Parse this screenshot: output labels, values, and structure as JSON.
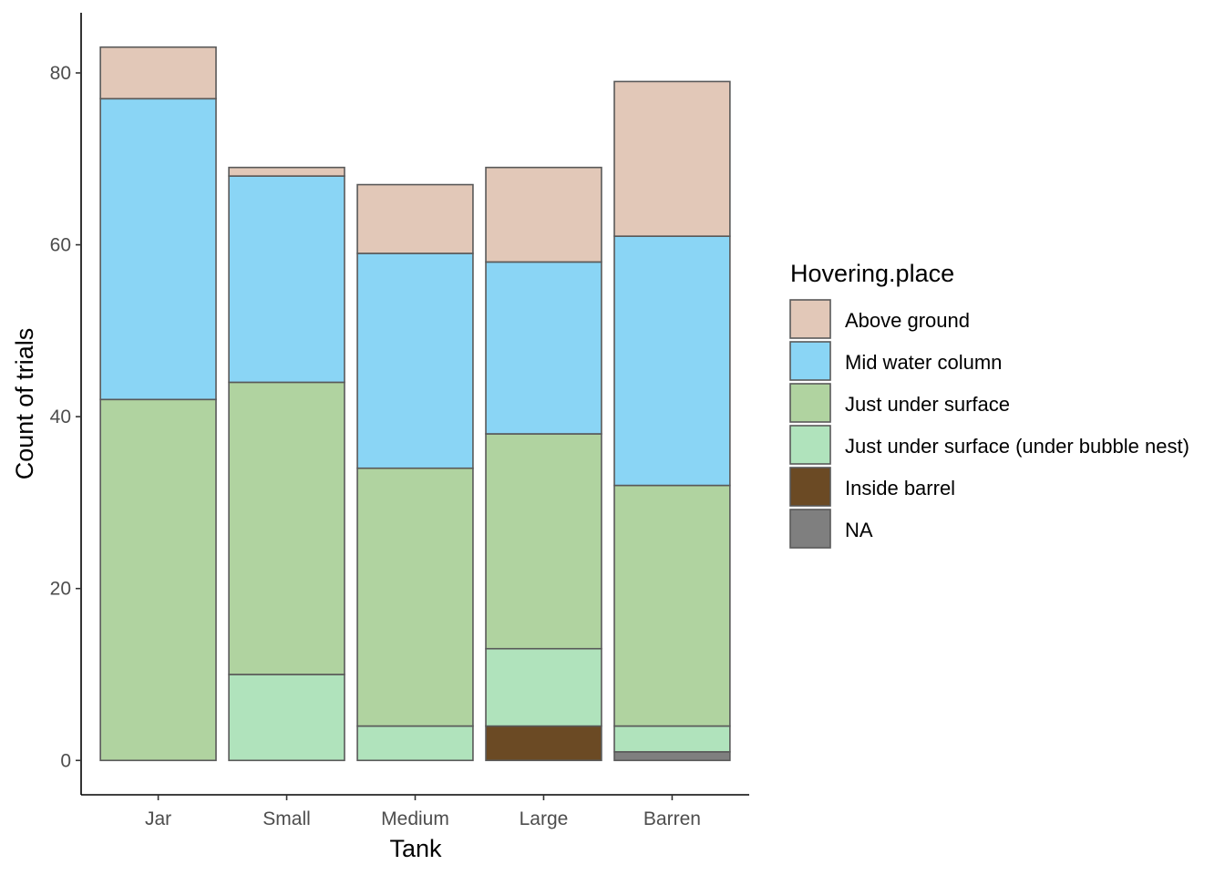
{
  "chart_data": {
    "type": "bar",
    "stacked": true,
    "categories": [
      "Jar",
      "Small",
      "Medium",
      "Large",
      "Barren"
    ],
    "xlabel": "Tank",
    "ylabel": "Count of trials",
    "ylim": [
      -4,
      87
    ],
    "yticks": [
      0,
      20,
      40,
      60,
      80
    ],
    "grid": false,
    "legend": {
      "title": "Hovering.place",
      "position": "right"
    },
    "series": [
      {
        "name": "Above ground",
        "color": "#e2c8b8",
        "values": [
          6,
          1,
          8,
          11,
          18
        ]
      },
      {
        "name": "Mid water column",
        "color": "#8ad5f5",
        "values": [
          35,
          24,
          25,
          20,
          29
        ]
      },
      {
        "name": "Just under surface",
        "color": "#b0d3a0",
        "values": [
          42,
          34,
          30,
          25,
          28
        ]
      },
      {
        "name": "Just under surface (under bubble nest)",
        "color": "#b0e3bc",
        "values": [
          0,
          10,
          4,
          9,
          3
        ]
      },
      {
        "name": "Inside barrel",
        "color": "#6b4a24",
        "values": [
          0,
          0,
          0,
          4,
          0
        ]
      },
      {
        "name": "NA",
        "color": "#7f7f7f",
        "values": [
          0,
          0,
          0,
          0,
          1
        ]
      }
    ]
  }
}
